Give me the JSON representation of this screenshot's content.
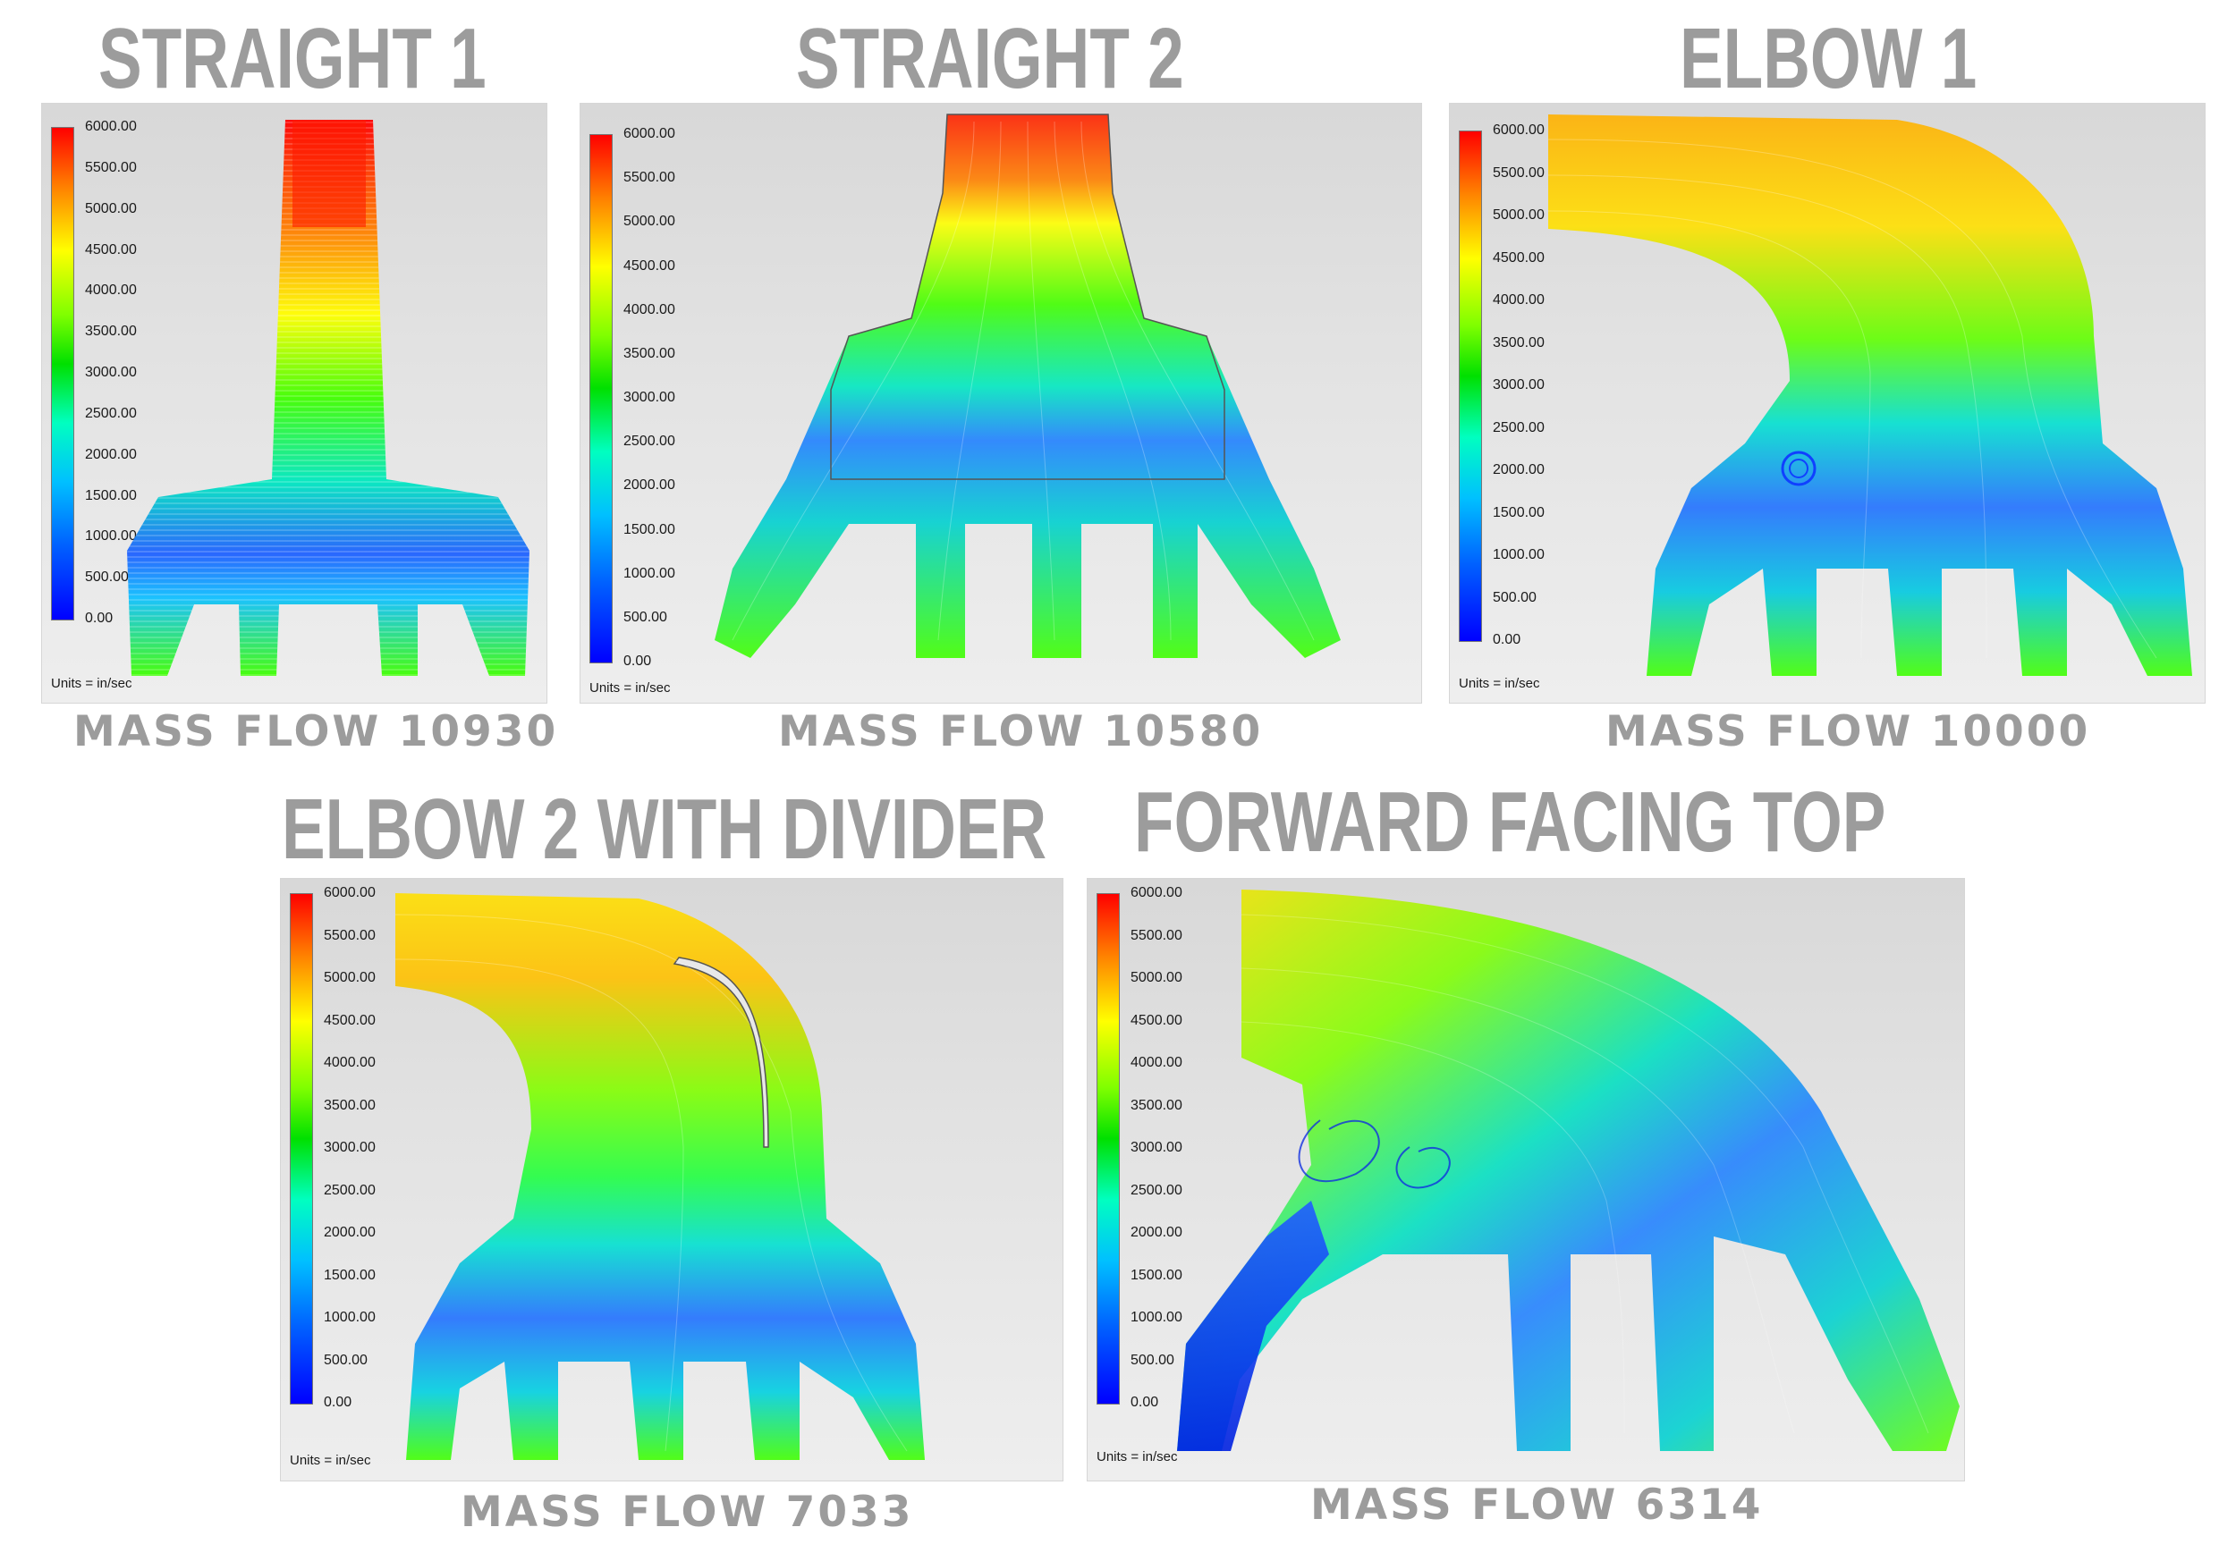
{
  "panels": [
    {
      "title": "STRAIGHT 1",
      "mass_flow": "MASS FLOW 10930"
    },
    {
      "title": "STRAIGHT 2",
      "mass_flow": "MASS FLOW 10580"
    },
    {
      "title": "ELBOW 1",
      "mass_flow": "MASS FLOW 10000"
    },
    {
      "title": "ELBOW 2 WITH DIVIDER",
      "mass_flow": "MASS FLOW 7033"
    },
    {
      "title": "FORWARD FACING TOP",
      "mass_flow": "MASS FLOW 6314"
    }
  ],
  "legend": {
    "ticks": [
      "6000.00",
      "5500.00",
      "5000.00",
      "4500.00",
      "4000.00",
      "3500.00",
      "3000.00",
      "2500.00",
      "2000.00",
      "1500.00",
      "1000.00",
      "500.00",
      "0.00"
    ],
    "units": "Units = in/sec",
    "colors": [
      "#0000ff",
      "#0080ff",
      "#00e0ff",
      "#00e000",
      "#80ff00",
      "#ffff00",
      "#ff8000",
      "#ff0000"
    ]
  }
}
